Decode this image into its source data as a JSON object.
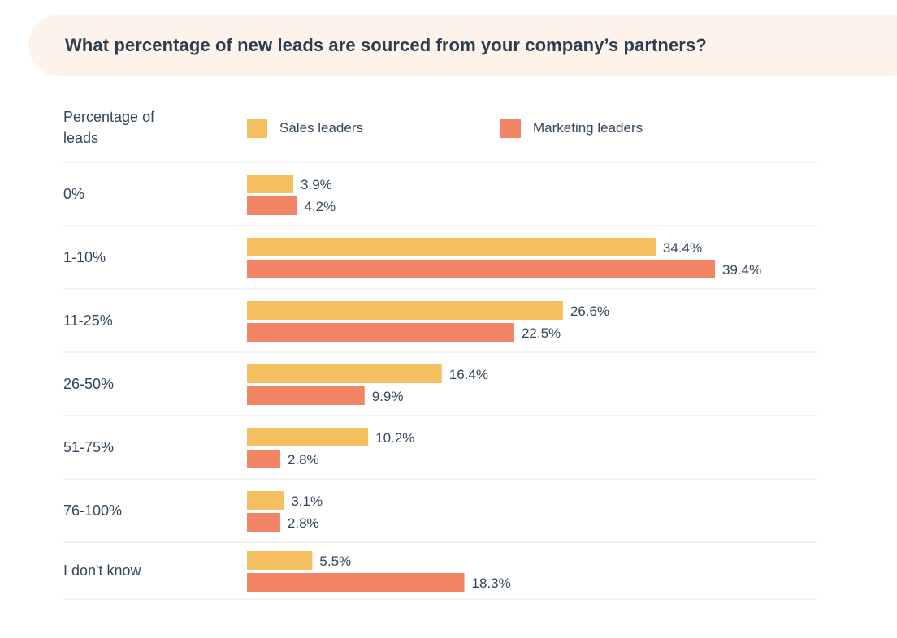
{
  "title": "What percentage of new leads are sourced from your company’s partners?",
  "column_header": "Percentage of leads",
  "colors": {
    "sales": "#f5c060",
    "marketing": "#f08465",
    "banner": "#fdf3eb",
    "text": "#33475b",
    "divider": "#e2e6ea"
  },
  "chart_data": {
    "type": "bar",
    "orientation": "horizontal",
    "categories": [
      "0%",
      "1-10%",
      "11-25%",
      "26-50%",
      "51-75%",
      "76-100%",
      "I don't know"
    ],
    "series": [
      {
        "name": "Sales leaders",
        "values": [
          3.9,
          34.4,
          26.6,
          16.4,
          10.2,
          3.1,
          5.5
        ],
        "labels": [
          "3.9%",
          "34.4%",
          "26.6%",
          "16.4%",
          "10.2%",
          "3.1%",
          "5.5%"
        ]
      },
      {
        "name": "Marketing leaders",
        "values": [
          4.2,
          39.4,
          22.5,
          9.9,
          2.8,
          2.8,
          18.3
        ],
        "labels": [
          "4.2%",
          "39.4%",
          "22.5%",
          "9.9%",
          "2.8%",
          "2.8%",
          "18.3%"
        ]
      }
    ],
    "legend_position": "top"
  }
}
